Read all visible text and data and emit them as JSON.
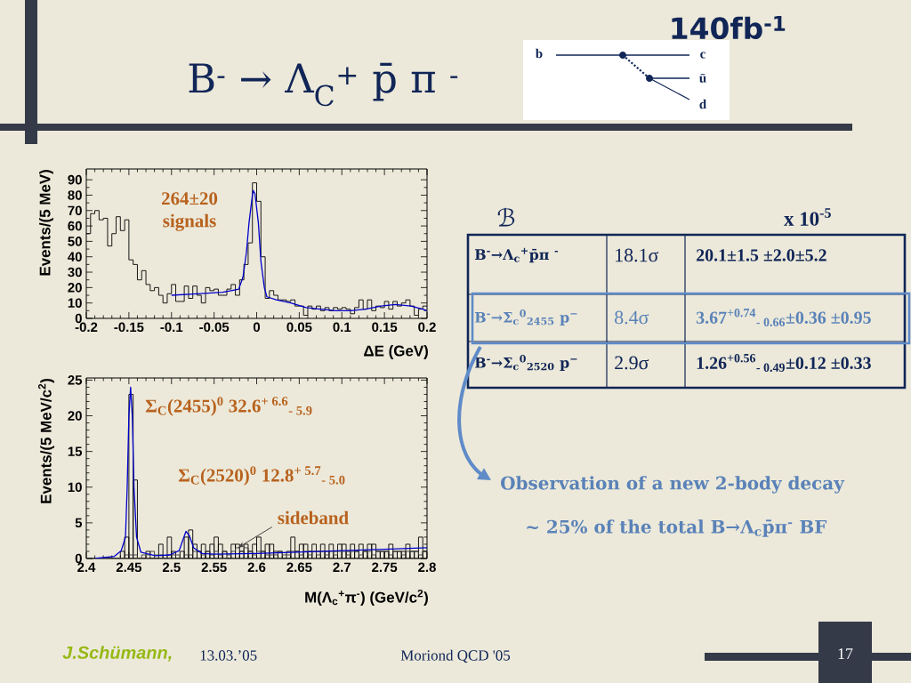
{
  "chart_data": [
    {
      "type": "other",
      "title": "B$^{-}$ → Λ$_{C}$$^{+}$ p̄ π $^{-}$",
      "annotations": [
        "140fb$^{-1}$",
        "b",
        "c",
        "ū",
        "d"
      ]
    },
    {
      "type": "histogram",
      "xlabel": "ΔE (GeV)",
      "ylabel": "Events/(5 MeV)",
      "xlim": [
        -0.2,
        0.2
      ],
      "ylim": [
        0,
        97
      ],
      "xticks": [
        -0.2,
        -0.15,
        -0.1,
        -0.05,
        0,
        0.05,
        0.1,
        0.15,
        0.2
      ],
      "yticks": [
        0,
        10,
        20,
        30,
        40,
        50,
        60,
        70,
        80,
        90
      ],
      "annotations": [
        "264±20 signals"
      ],
      "series": [
        {
          "type": "histogram",
          "color": "#000000",
          "bins": [
            -0.2,
            -0.195,
            -0.19,
            -0.185,
            -0.18,
            -0.175,
            -0.17,
            -0.165,
            -0.16,
            -0.155,
            -0.15,
            -0.145,
            -0.14,
            -0.135,
            -0.13,
            -0.125,
            -0.12,
            -0.115,
            -0.11,
            -0.105,
            -0.1,
            -0.095,
            -0.09,
            -0.085,
            -0.08,
            -0.075,
            -0.07,
            -0.065,
            -0.06,
            -0.055,
            -0.05,
            -0.045,
            -0.04,
            -0.035,
            -0.03,
            -0.025,
            -0.02,
            -0.015,
            -0.01,
            -0.005,
            0,
            0.005,
            0.01,
            0.015,
            0.02,
            0.025,
            0.03,
            0.035,
            0.04,
            0.045,
            0.05,
            0.055,
            0.06,
            0.065,
            0.07,
            0.075,
            0.08,
            0.085,
            0.09,
            0.095,
            0.1,
            0.105,
            0.11,
            0.115,
            0.12,
            0.125,
            0.13,
            0.135,
            0.14,
            0.145,
            0.15,
            0.155,
            0.16,
            0.165,
            0.17,
            0.175,
            0.18,
            0.185,
            0.19,
            0.195,
            0.2
          ],
          "values": [
            55,
            68,
            70,
            64,
            65,
            47,
            55,
            66,
            57,
            64,
            38,
            35,
            25,
            31,
            22,
            18,
            20,
            15,
            10,
            16,
            22,
            11,
            11,
            21,
            13,
            21,
            15,
            10,
            20,
            18,
            19,
            15,
            15,
            19,
            22,
            15,
            25,
            35,
            49,
            88,
            76,
            40,
            13,
            18,
            15,
            12,
            12,
            11,
            12,
            8,
            8,
            2,
            8,
            6,
            8,
            5,
            7,
            5,
            7,
            6,
            7,
            6,
            3,
            7,
            12,
            6,
            12,
            5,
            8,
            7,
            11,
            6,
            11,
            8,
            10,
            12,
            8,
            2,
            6,
            8
          ]
        },
        {
          "type": "line",
          "color": "#0000cc",
          "x": [
            -0.1,
            -0.07,
            -0.04,
            -0.03,
            -0.021,
            -0.016,
            -0.012,
            -0.009,
            -0.005,
            -0.004,
            -0.002,
            0.002,
            0.005,
            0.009,
            0.012,
            0.023,
            0.04,
            0.058,
            0.075,
            0.093,
            0.11,
            0.128,
            0.146,
            0.163,
            0.181,
            0.195,
            0.2
          ],
          "values": [
            15,
            16,
            17,
            18,
            19,
            27,
            43,
            62,
            80,
            83,
            81,
            62,
            37,
            20,
            14,
            12,
            10,
            7,
            6,
            5,
            5,
            6,
            8,
            9,
            8,
            6,
            5
          ]
        }
      ]
    },
    {
      "type": "other",
      "annotations": [
        "ℬ",
        "x 10$^{-5}$",
        "B$^{-}$→Λ$_{c}$$^{+}$p̄π $^{-}$",
        "18.1σ",
        "20.1±1.5 ±2.0±5.2",
        "B$^{-}$→Σ$_{c}$$^{0}$$_{2455}$ p$^{−}$",
        "8.4σ",
        "3.67$^{+0.74}$$_{- 0.66}$±0.36 ±0.95",
        "B$^{-}$→Σ$_{c}$$^{0}$$_{2520}$ p$^{−}$",
        "2.9σ",
        "1.26$^{+0.56}$$_{- 0.49}$±0.12 ±0.33",
        "Observation of a new 2-body decay",
        "~ 25% of the total B→Λ$_{c}$p̄π$^{-}$ BF"
      ]
    },
    {
      "type": "histogram",
      "xlabel": "M(Λ$_{c}$$^{+}$π$^{-}$) (GeV/c$^{2}$)",
      "ylabel": "Events/(5 MeV/c$^{2}$)",
      "xlim": [
        2.4,
        2.8
      ],
      "ylim": [
        0,
        25.3
      ],
      "xticks": [
        2.4,
        2.45,
        2.5,
        2.55,
        2.6,
        2.65,
        2.7,
        2.75,
        2.8
      ],
      "yticks": [
        0,
        5,
        10,
        15,
        20,
        25
      ],
      "annotations": [
        "Σ$_{C}$(2455)$^{0}$ 32.6$^{+ 6.6}$$_{- 5.9}$",
        "Σ$_{C}$(2520)$^{0}$ 12.8$^{+ 5.7}$$_{- 5.0}$",
        {
          "text": "sideband",
          "x": 2.578,
          "y": 1.5
        }
      ],
      "series": [
        {
          "type": "histogram",
          "color": "#000000",
          "bins": [
            2.4,
            2.405,
            2.41,
            2.415,
            2.42,
            2.425,
            2.43,
            2.435,
            2.44,
            2.445,
            2.45,
            2.455,
            2.46,
            2.465,
            2.47,
            2.475,
            2.48,
            2.485,
            2.49,
            2.495,
            2.5,
            2.505,
            2.51,
            2.515,
            2.52,
            2.525,
            2.53,
            2.535,
            2.54,
            2.545,
            2.55,
            2.555,
            2.56,
            2.565,
            2.57,
            2.575,
            2.58,
            2.585,
            2.59,
            2.595,
            2.6,
            2.605,
            2.61,
            2.615,
            2.62,
            2.625,
            2.63,
            2.635,
            2.64,
            2.645,
            2.65,
            2.655,
            2.66,
            2.665,
            2.67,
            2.675,
            2.68,
            2.685,
            2.69,
            2.695,
            2.7,
            2.705,
            2.71,
            2.715,
            2.72,
            2.725,
            2.73,
            2.735,
            2.74,
            2.745,
            2.75,
            2.755,
            2.76,
            2.765,
            2.77,
            2.775,
            2.78,
            2.785,
            2.79,
            2.795,
            2.8
          ],
          "values": [
            0,
            0,
            0,
            0,
            0,
            0,
            0,
            0,
            1,
            3,
            23,
            11,
            0,
            0,
            1,
            0,
            0,
            2,
            0,
            3,
            1,
            0,
            1,
            3,
            4,
            2,
            1,
            2,
            1,
            2,
            3,
            2,
            1,
            0,
            2,
            2,
            1,
            2,
            1,
            2,
            3,
            1,
            2,
            2,
            1,
            1,
            0,
            1,
            3,
            1,
            2,
            2,
            1,
            2,
            1,
            2,
            1,
            2,
            1,
            2,
            2,
            1,
            2,
            1,
            2,
            1,
            2,
            2,
            1,
            1,
            1,
            2,
            1,
            1,
            1,
            2,
            1,
            1,
            3,
            1
          ]
        },
        {
          "type": "histogram",
          "color": "#3a3a3a",
          "bins": [
            2.4,
            2.405,
            2.41,
            2.415,
            2.42,
            2.425,
            2.43,
            2.435,
            2.44,
            2.445,
            2.45,
            2.455,
            2.46,
            2.465,
            2.47,
            2.475,
            2.48,
            2.485,
            2.49,
            2.495,
            2.5,
            2.505,
            2.51,
            2.515,
            2.52,
            2.525,
            2.53,
            2.535,
            2.54,
            2.545,
            2.55,
            2.555,
            2.56,
            2.565,
            2.57,
            2.575,
            2.58,
            2.585,
            2.59,
            2.595,
            2.6,
            2.605,
            2.61,
            2.615,
            2.62,
            2.625,
            2.63,
            2.635,
            2.64,
            2.645,
            2.65,
            2.655,
            2.66,
            2.665,
            2.67,
            2.675,
            2.68,
            2.685,
            2.69,
            2.695,
            2.7,
            2.705,
            2.71,
            2.715,
            2.72,
            2.725,
            2.73,
            2.735,
            2.74,
            2.745,
            2.75,
            2.755,
            2.76,
            2.765,
            2.77,
            2.775,
            2.78,
            2.785,
            2.79,
            2.795,
            2.8
          ],
          "values": [
            0,
            0,
            0,
            0,
            0,
            0,
            0,
            0,
            0,
            0.5,
            0.5,
            0.5,
            0,
            0.5,
            0.5,
            1,
            0.5,
            0.5,
            0,
            0.5,
            0.5,
            0.5,
            0,
            0.5,
            0.5,
            1,
            1,
            0.5,
            1,
            0.5,
            1,
            0.5,
            1,
            0.5,
            1,
            1.5,
            1,
            1.5,
            1,
            0.5,
            1,
            1,
            0.5,
            0.5,
            0.5,
            1,
            0.5,
            0.5,
            1,
            1,
            0.5,
            1,
            0.5,
            1,
            0.5,
            1,
            0.5,
            1,
            0.5,
            1,
            1,
            0.5,
            1,
            1,
            0.5,
            1,
            1,
            0.5,
            1,
            1,
            1,
            0.5,
            1,
            1,
            0.5,
            1,
            1,
            1,
            0.5,
            1
          ]
        },
        {
          "type": "line",
          "color": "#0000cc",
          "x": [
            2.41,
            2.433,
            2.441,
            2.446,
            2.448,
            2.45,
            2.452,
            2.454,
            2.456,
            2.459,
            2.464,
            2.481,
            2.498,
            2.509,
            2.514,
            2.517,
            2.521,
            2.526,
            2.536,
            2.55,
            2.6,
            2.65,
            2.7,
            2.75,
            2.8
          ],
          "values": [
            0,
            0.3,
            1.1,
            3,
            10,
            20,
            24,
            20,
            10,
            3,
            0.9,
            0.4,
            0.5,
            1.1,
            2.8,
            3.8,
            3.2,
            1.5,
            0.7,
            0.6,
            0.7,
            0.9,
            1.1,
            1.3,
            1.5
          ]
        }
      ]
    },
    {
      "type": "other",
      "annotations": [
        "J.Schümann,",
        "13.03.’05",
        "Moriond QCD '05",
        "17"
      ]
    }
  ]
}
